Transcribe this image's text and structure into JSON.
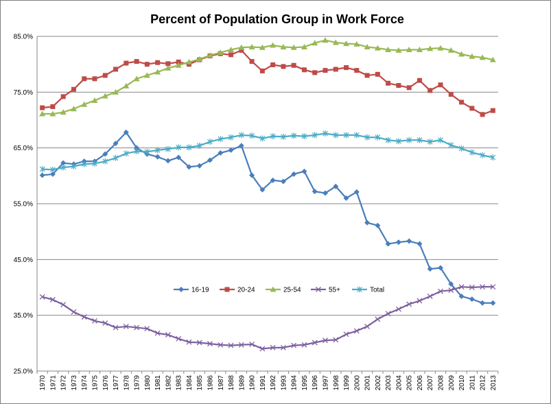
{
  "chart_data": {
    "type": "line",
    "title": "Percent of Population Group  in Work Force",
    "xlabel": "",
    "ylabel": "",
    "ylim": [
      25,
      85
    ],
    "yticks": [
      25,
      35,
      45,
      55,
      65,
      75,
      85
    ],
    "ytick_labels": [
      "25.0%",
      "35.0%",
      "45.0%",
      "55.0%",
      "65.0%",
      "75.0%",
      "85.0%"
    ],
    "grid": true,
    "legend_position": "inside-lower-center",
    "x": [
      "1970",
      "1971",
      "1972",
      "1973",
      "1974",
      "1975",
      "1976",
      "1977",
      "1978",
      "1979",
      "1980",
      "1981",
      "1982",
      "1983",
      "1984",
      "1985",
      "1986",
      "1987",
      "1988",
      "1989",
      "1990",
      "1991",
      "1992",
      "1993",
      "1994",
      "1995",
      "1996",
      "1997",
      "1998",
      "1999",
      "2000",
      "2001",
      "2002",
      "2003",
      "2004",
      "2005",
      "2006",
      "2007",
      "2008",
      "2009",
      "2010",
      "2011",
      "2012",
      "2013"
    ],
    "series": [
      {
        "name": "16-19",
        "color": "#4a7ebb",
        "marker": "diamond",
        "values": [
          60.1,
          60.3,
          62.3,
          62.1,
          62.6,
          62.6,
          63.9,
          65.8,
          67.8,
          65.0,
          63.9,
          63.4,
          62.7,
          63.3,
          61.6,
          61.8,
          62.8,
          64.1,
          64.6,
          65.4,
          60.1,
          57.5,
          59.2,
          59.0,
          60.3,
          60.8,
          57.2,
          56.9,
          58.1,
          56.0,
          57.1,
          51.6,
          51.1,
          47.8,
          48.1,
          48.3,
          47.8,
          43.3,
          43.5,
          40.6,
          38.4,
          37.9,
          37.2,
          37.2
        ]
      },
      {
        "name": "20-24",
        "color": "#be4b48",
        "marker": "square",
        "values": [
          72.2,
          72.4,
          74.2,
          75.5,
          77.4,
          77.4,
          78.0,
          79.1,
          80.2,
          80.5,
          80.0,
          80.3,
          80.1,
          80.4,
          80.0,
          80.8,
          81.5,
          81.9,
          81.7,
          82.5,
          80.5,
          78.8,
          79.9,
          79.6,
          79.8,
          79.0,
          78.5,
          78.9,
          79.1,
          79.4,
          78.9,
          78.0,
          78.2,
          76.6,
          76.2,
          75.8,
          77.1,
          75.3,
          76.3,
          74.6,
          73.2,
          72.1,
          71.0,
          71.7
        ]
      },
      {
        "name": "25-54",
        "color": "#98b954",
        "marker": "triangle",
        "values": [
          71.1,
          71.1,
          71.4,
          72.0,
          72.8,
          73.5,
          74.3,
          75.0,
          76.1,
          77.4,
          78.0,
          78.6,
          79.3,
          79.8,
          80.4,
          80.9,
          81.6,
          82.1,
          82.6,
          83.0,
          83.1,
          83.0,
          83.4,
          83.1,
          83.0,
          83.1,
          83.8,
          84.3,
          83.9,
          83.7,
          83.6,
          83.1,
          82.9,
          82.6,
          82.5,
          82.6,
          82.6,
          82.8,
          82.9,
          82.5,
          81.8,
          81.4,
          81.2,
          80.8
        ]
      },
      {
        "name": "55+",
        "color": "#7d60a0",
        "marker": "x",
        "values": [
          38.3,
          37.8,
          36.9,
          35.6,
          34.7,
          34.0,
          33.6,
          32.8,
          33.0,
          32.8,
          32.6,
          31.8,
          31.5,
          30.8,
          30.2,
          30.1,
          29.9,
          29.7,
          29.6,
          29.7,
          29.8,
          29.0,
          29.2,
          29.2,
          29.6,
          29.7,
          30.1,
          30.5,
          30.6,
          31.6,
          32.2,
          33.0,
          34.3,
          35.3,
          36.1,
          37.0,
          37.6,
          38.4,
          39.3,
          39.5,
          40.1,
          40.0,
          40.1,
          40.1
        ]
      },
      {
        "name": "Total",
        "color": "#4bacc6",
        "marker": "star",
        "values": [
          61.2,
          61.1,
          61.5,
          61.7,
          62.1,
          62.2,
          62.6,
          63.2,
          64.0,
          64.4,
          64.3,
          64.6,
          64.8,
          65.1,
          65.1,
          65.4,
          66.1,
          66.6,
          66.9,
          67.3,
          67.2,
          66.7,
          67.1,
          67.0,
          67.2,
          67.1,
          67.3,
          67.6,
          67.3,
          67.3,
          67.3,
          66.9,
          66.9,
          66.4,
          66.2,
          66.4,
          66.4,
          66.1,
          66.4,
          65.5,
          64.9,
          64.2,
          63.7,
          63.3
        ]
      }
    ]
  }
}
